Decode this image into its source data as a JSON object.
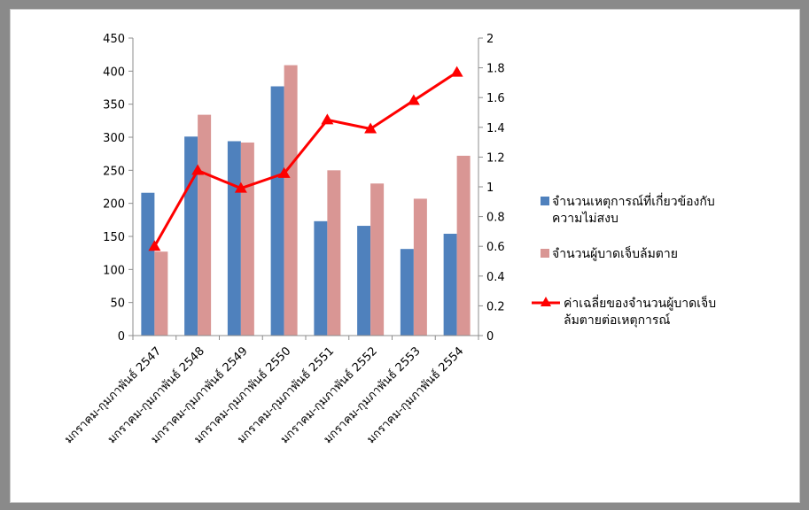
{
  "chart_data": {
    "type": "bar",
    "categories": [
      "มกราคม-กุมภาพันธ์ 2547",
      "มกราคม-กุมภาพันธ์ 2548",
      "มกราคม-กุมภาพันธ์ 2549",
      "มกราคม-กุมภาพันธ์ 2550",
      "มกราคม-กุมภาพันธ์ 2551",
      "มกราคม-กุมภาพันธ์ 2552",
      "มกราคม-กุมภาพันธ์ 2553",
      "มกราคม-กุมภาพันธ์ 2554"
    ],
    "series": [
      {
        "name_lines": [
          "จำนวนเหตุการณ์ที่เกี่ยวข้องกับ",
          "ความไม่สงบ"
        ],
        "type": "bar",
        "axis": "left",
        "color": "#4f81bd",
        "values": [
          216,
          301,
          294,
          377,
          173,
          166,
          131,
          154
        ]
      },
      {
        "name_lines": [
          "จำนวนผู้บาดเจ็บล้มตาย"
        ],
        "type": "bar",
        "axis": "left",
        "color": "#d99694",
        "values": [
          127,
          334,
          292,
          409,
          250,
          230,
          207,
          272
        ]
      },
      {
        "name_lines": [
          "ค่าเฉลี่ยของจำนวนผู้บาดเจ็บ",
          "ล้มตายต่อเหตุการณ์"
        ],
        "type": "line",
        "axis": "right",
        "color": "#ff0000",
        "marker": "triangle",
        "values": [
          0.6,
          1.11,
          0.99,
          1.09,
          1.45,
          1.39,
          1.58,
          1.77
        ]
      }
    ],
    "y_left": {
      "range": [
        0,
        450
      ],
      "ticks": [
        "0",
        "50",
        "100",
        "150",
        "200",
        "250",
        "300",
        "350",
        "400",
        "450"
      ]
    },
    "y_right": {
      "range": [
        0,
        2
      ],
      "ticks": [
        "0",
        "0.2",
        "0.4",
        "0.6",
        "0.8",
        "1",
        "1.2",
        "1.4",
        "1.6",
        "1.8",
        "2"
      ]
    },
    "grid": false,
    "legend_position": "right"
  }
}
